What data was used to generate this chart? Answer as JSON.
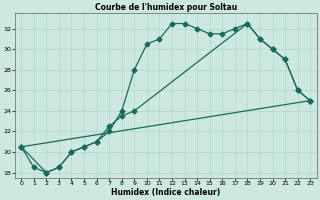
{
  "title": "Courbe de l'humidex pour Soltau",
  "xlabel": "Humidex (Indice chaleur)",
  "bg_color": "#cce8e0",
  "grid_color": "#aaccC4",
  "line_color": "#1a6b5a",
  "xlim": [
    -0.5,
    23.5
  ],
  "ylim": [
    17.5,
    33.5
  ],
  "xticks": [
    0,
    1,
    2,
    3,
    4,
    5,
    6,
    7,
    8,
    9,
    10,
    11,
    12,
    13,
    14,
    15,
    16,
    17,
    18,
    19,
    20,
    21,
    22,
    23
  ],
  "yticks": [
    18,
    20,
    22,
    24,
    26,
    28,
    30,
    32
  ],
  "curve1_x": [
    0,
    1,
    2,
    3,
    4,
    5,
    6,
    7,
    8,
    9,
    10,
    11,
    12,
    13,
    14,
    15,
    16,
    17,
    18,
    19,
    20,
    21,
    22,
    23
  ],
  "curve1_y": [
    20.5,
    18.5,
    18.0,
    18.5,
    20.0,
    20.5,
    21.0,
    22.0,
    24.0,
    28.0,
    30.5,
    31.0,
    32.5,
    32.5,
    32.0,
    31.5,
    31.5,
    32.0,
    32.5,
    31.0,
    30.0,
    29.0,
    26.0,
    25.0
  ],
  "curve2_x": [
    0,
    2,
    3,
    4,
    5,
    6,
    7,
    8,
    9,
    18,
    19,
    20,
    21,
    22,
    23
  ],
  "curve2_y": [
    20.5,
    18.0,
    18.5,
    20.0,
    20.5,
    21.0,
    22.5,
    23.5,
    24.0,
    32.5,
    31.0,
    30.0,
    29.0,
    26.0,
    25.0
  ],
  "curve3_x": [
    0,
    23
  ],
  "curve3_y": [
    20.5,
    25.0
  ]
}
